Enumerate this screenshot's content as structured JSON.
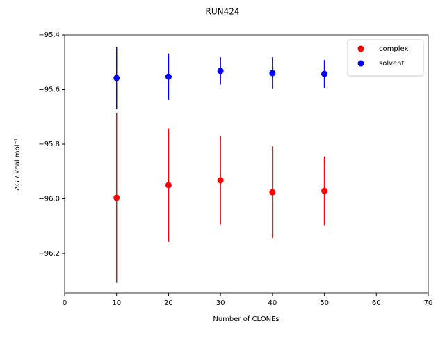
{
  "chart_data": {
    "type": "errorbar",
    "title": "RUN424",
    "x_label": "Number of CLONEs",
    "y_label": "ΔG / kcal mol⁻¹",
    "x": [
      10,
      20,
      30,
      40,
      50
    ],
    "series": [
      {
        "name": "complex",
        "color": "#ff0000",
        "values": [
          -95.996,
          -95.95,
          -95.932,
          -95.976,
          -95.971
        ],
        "errors": [
          0.31,
          0.207,
          0.162,
          0.168,
          0.126
        ]
      },
      {
        "name": "solvent",
        "color": "#0000ff",
        "values": [
          -95.558,
          -95.553,
          -95.532,
          -95.54,
          -95.543
        ],
        "errors": [
          0.114,
          0.085,
          0.05,
          0.058,
          0.051
        ]
      }
    ],
    "xlim": [
      0,
      70
    ],
    "xticks": [
      0,
      10,
      20,
      30,
      40,
      50,
      60,
      70
    ],
    "ylim": [
      -96.345,
      -95.4
    ],
    "yticks": [
      {
        "value": -96.2,
        "label": "−96.2"
      },
      {
        "value": -96.0,
        "label": "−96.0"
      },
      {
        "value": -95.8,
        "label": "−95.8"
      },
      {
        "value": -95.6,
        "label": "−95.6"
      },
      {
        "value": -95.4,
        "label": "−95.4"
      }
    ],
    "legend": "upper right"
  }
}
